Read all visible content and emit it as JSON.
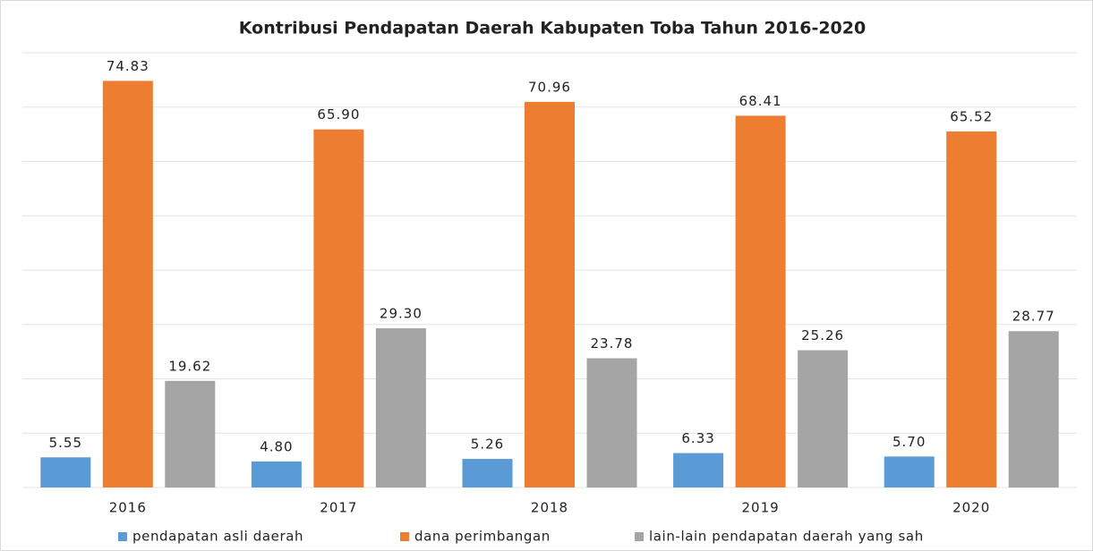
{
  "chart_data": {
    "type": "bar",
    "title": "Kontribusi Pendapatan Daerah Kabupaten Toba Tahun 2016-2020",
    "categories": [
      "2016",
      "2017",
      "2018",
      "2019",
      "2020"
    ],
    "series": [
      {
        "name": "pendapatan asli daerah",
        "color": "#5b9bd5",
        "values": [
          5.55,
          4.8,
          5.26,
          6.33,
          5.7
        ],
        "value_labels": [
          "5.55",
          "4.80",
          "5.26",
          "6.33",
          "5.70"
        ]
      },
      {
        "name": "dana perimbangan",
        "color": "#ed7d31",
        "values": [
          74.83,
          65.9,
          70.96,
          68.41,
          65.52
        ],
        "value_labels": [
          "74.83",
          "65.90",
          "70.96",
          "68.41",
          "65.52"
        ]
      },
      {
        "name": "lain-lain pendapatan daerah yang sah",
        "color": "#a5a5a5",
        "values": [
          19.62,
          29.3,
          23.78,
          25.26,
          28.77
        ],
        "value_labels": [
          "19.62",
          "29.30",
          "23.78",
          "25.26",
          "28.77"
        ]
      }
    ],
    "ylim": [
      0,
      80
    ],
    "yticks": [
      0,
      10,
      20,
      30,
      40,
      50,
      60,
      70,
      80
    ],
    "grid": true,
    "legend": "bottom"
  }
}
